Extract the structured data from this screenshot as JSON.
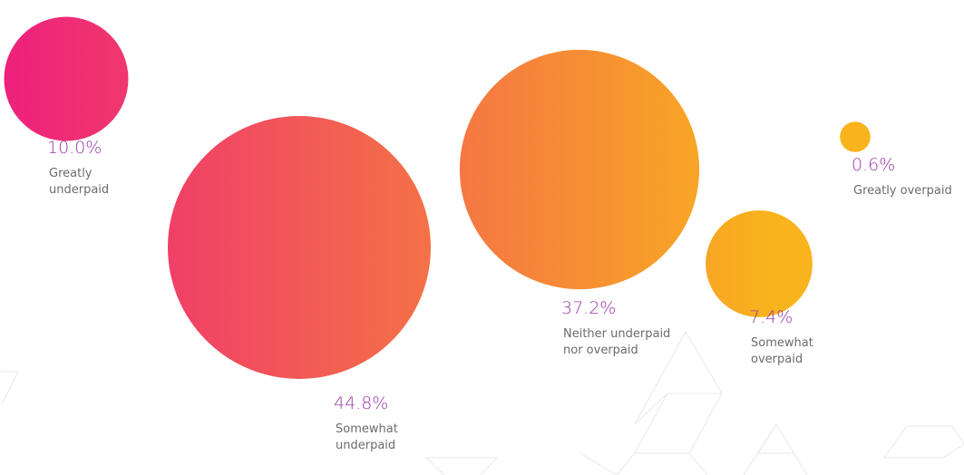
{
  "chart_data": {
    "type": "bubble",
    "title": "",
    "categories": [
      "Greatly underpaid",
      "Somewhat underpaid",
      "Neither underpaid nor overpaid",
      "Somewhat overpaid",
      "Greatly overpaid"
    ],
    "values": [
      10.0,
      44.8,
      37.2,
      7.4,
      0.6
    ],
    "value_labels": [
      "10.0%",
      "44.8%",
      "37.2%",
      "7.4%",
      "0.6%"
    ],
    "label_lines": [
      [
        "Greatly",
        "underpaid"
      ],
      [
        "Somewhat",
        "underpaid"
      ],
      [
        "Neither underpaid",
        "nor overpaid"
      ],
      [
        "Somewhat",
        "overpaid"
      ],
      [
        "Greatly overpaid"
      ]
    ],
    "unit": "%",
    "colors": {
      "start": "#ee1f7d",
      "end": "#f9a825",
      "value_text": "#9c3aa6",
      "label_text": "#6b6b6b"
    }
  }
}
